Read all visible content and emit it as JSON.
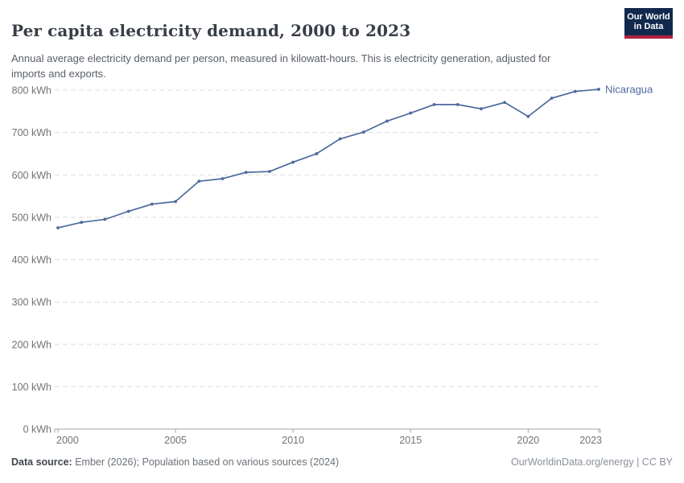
{
  "header": {
    "title": "Per capita electricity demand, 2000 to 2023",
    "subtitle": "Annual average electricity demand per person, measured in kilowatt-hours. This is electricity generation, adjusted for imports and exports.",
    "logo": {
      "line1": "Our World",
      "line2": "in Data",
      "bg_color": "#12294e",
      "accent_color": "#b0223c"
    }
  },
  "chart_data": {
    "type": "line",
    "title": "Per capita electricity demand, 2000 to 2023",
    "xlabel": "",
    "ylabel": "",
    "unit": "kWh",
    "ylim": [
      0,
      800
    ],
    "ytick_interval": 100,
    "ytick_suffix": " kWh",
    "xticks": [
      2000,
      2005,
      2010,
      2015,
      2020,
      2023
    ],
    "grid": "horizontal-dashed",
    "legend_position": "end-of-line-label",
    "colors": {
      "grid": "#dcdcdc",
      "axis": "#a3a3a3",
      "tick_labels": "#737373"
    },
    "x": [
      2000,
      2001,
      2002,
      2003,
      2004,
      2005,
      2006,
      2007,
      2008,
      2009,
      2010,
      2011,
      2012,
      2013,
      2014,
      2015,
      2016,
      2017,
      2018,
      2019,
      2020,
      2021,
      2022,
      2023
    ],
    "series": [
      {
        "name": "Nicaragua",
        "color": "#4c6a9c",
        "values": [
          475,
          488,
          495,
          514,
          531,
          537,
          585,
          591,
          606,
          608,
          630,
          650,
          685,
          701,
          727,
          746,
          766,
          766,
          756,
          771,
          738,
          781,
          797,
          802
        ]
      }
    ]
  },
  "footer": {
    "datasource_bold": "Data source:",
    "datasource_rest": " Ember (2026); Population based on various sources (2024)",
    "credit": "OurWorldinData.org/energy | CC BY"
  }
}
